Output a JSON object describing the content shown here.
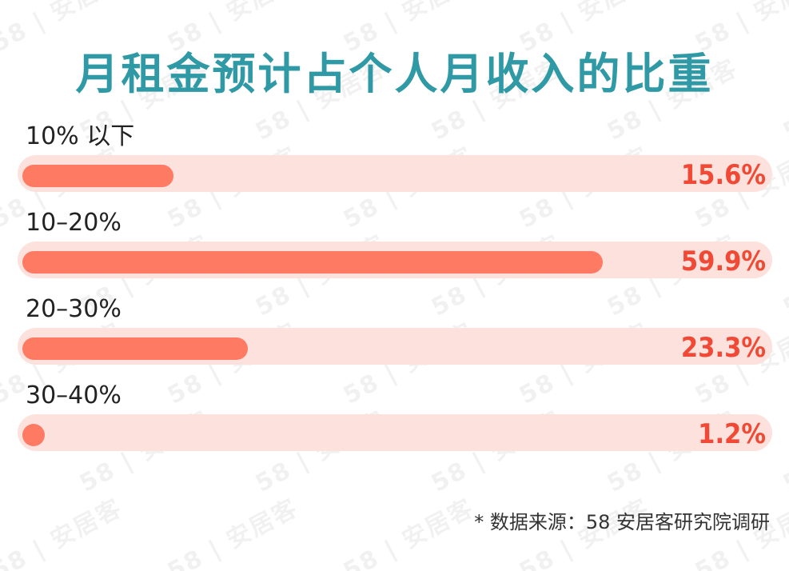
{
  "chart_data": {
    "type": "bar",
    "orientation": "horizontal",
    "title": "月租金预计占个人月收入的比重",
    "categories": [
      "10% 以下",
      "10–20%",
      "20–30%",
      "30–40%"
    ],
    "values": [
      15.6,
      59.9,
      23.3,
      1.2
    ],
    "value_labels": [
      "15.6%",
      "59.9%",
      "23.3%",
      "1.2%"
    ],
    "xlim": [
      0,
      100
    ],
    "grid": false,
    "legend": "none"
  },
  "footnote": "* 数据来源：58 安居客研究院调研",
  "watermark": "58 | 安居客",
  "colors": {
    "title": "#2f9aa5",
    "bar_fill": "#ff7a63",
    "bar_track": "#fde1dc",
    "value_text": "#f04a36",
    "label_text": "#222222"
  }
}
